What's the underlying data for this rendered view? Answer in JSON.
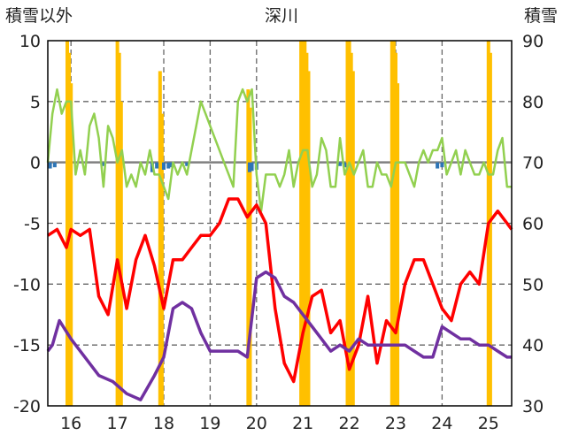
{
  "chart_data": {
    "type": "bar+line",
    "title": "深川",
    "y_left_label": "積雪以外",
    "y_right_label": "積雪",
    "y_left_range": [
      -20,
      10
    ],
    "y_left_ticks": [
      10,
      5,
      0,
      -5,
      -10,
      -15,
      -20
    ],
    "y_right_range": [
      30,
      90
    ],
    "y_right_ticks": [
      90,
      80,
      70,
      60,
      50,
      40,
      30
    ],
    "x_ticks": [
      "16",
      "17",
      "18",
      "19",
      "20",
      "21",
      "22",
      "23",
      "24",
      "25"
    ],
    "x_range": [
      15.5,
      25.5
    ],
    "grid": "dashed",
    "colors": {
      "snow_bar": "#ffc000",
      "precip_bar": "#2e75b6",
      "green": "#92d050",
      "red": "#ff0000",
      "purple": "#7030a0",
      "zero_line": "#808080"
    },
    "series": [
      {
        "color": "green",
        "axis": "left",
        "x": [
          15.5,
          15.6,
          15.7,
          15.8,
          15.9,
          16.0,
          16.1,
          16.2,
          16.3,
          16.4,
          16.5,
          16.6,
          16.7,
          16.8,
          16.9,
          17.0,
          17.1,
          17.2,
          17.3,
          17.4,
          17.5,
          17.6,
          17.7,
          17.8,
          17.9,
          18.0,
          18.1,
          18.2,
          18.3,
          18.4,
          18.5,
          18.6,
          18.7,
          18.8,
          18.9,
          19.0,
          19.1,
          19.2,
          19.3,
          19.4,
          19.5,
          19.6,
          19.7,
          19.8,
          19.9,
          20.0,
          20.1,
          20.2,
          20.3,
          20.4,
          20.5,
          20.6,
          20.7,
          20.8,
          20.9,
          21.0,
          21.1,
          21.2,
          21.3,
          21.4,
          21.5,
          21.6,
          21.7,
          21.8,
          21.9,
          22.0,
          22.1,
          22.2,
          22.3,
          22.4,
          22.5,
          22.6,
          22.7,
          22.8,
          22.9,
          23.0,
          23.1,
          23.2,
          23.3,
          23.4,
          23.5,
          23.6,
          23.7,
          23.8,
          23.9,
          24.0,
          24.1,
          24.2,
          24.3,
          24.4,
          24.5,
          24.6,
          24.7,
          24.8,
          24.9,
          25.0,
          25.1,
          25.2,
          25.3,
          25.4,
          25.5
        ],
        "values": [
          0,
          4,
          6,
          4,
          5,
          5,
          -1,
          1,
          -1,
          3,
          4,
          2,
          -2,
          3,
          2,
          0,
          1,
          -2,
          -1,
          -2,
          0,
          -1,
          1,
          -1,
          -1,
          -2,
          -3,
          0,
          -1,
          0,
          -1,
          1,
          3,
          5,
          4,
          3,
          2,
          1,
          0,
          -1,
          -2,
          5,
          6,
          5,
          6,
          -1,
          -4,
          -1,
          -1,
          -1,
          -2,
          -1,
          1,
          -2,
          0,
          1,
          1,
          -2,
          -1,
          2,
          1,
          -2,
          -2,
          2,
          -1,
          0,
          -1,
          0,
          1,
          -2,
          -2,
          0,
          -1,
          -1,
          -2,
          0,
          0,
          0,
          -1,
          -2,
          0,
          1,
          0,
          1,
          1,
          2,
          -1,
          0,
          1,
          -1,
          1,
          0,
          -1,
          -1,
          0,
          -1,
          -1,
          1,
          2,
          -2,
          -2
        ]
      },
      {
        "color": "red",
        "axis": "left",
        "x": [
          15.5,
          15.7,
          15.9,
          16.0,
          16.2,
          16.4,
          16.6,
          16.8,
          17.0,
          17.2,
          17.4,
          17.6,
          17.8,
          18.0,
          18.2,
          18.4,
          18.6,
          18.8,
          19.0,
          19.2,
          19.4,
          19.6,
          19.8,
          20.0,
          20.2,
          20.4,
          20.6,
          20.8,
          21.0,
          21.2,
          21.4,
          21.6,
          21.8,
          22.0,
          22.2,
          22.4,
          22.6,
          22.8,
          23.0,
          23.2,
          23.4,
          23.6,
          23.8,
          24.0,
          24.2,
          24.4,
          24.6,
          24.8,
          25.0,
          25.2,
          25.4,
          25.5
        ],
        "values": [
          -6,
          -5.5,
          -7,
          -5.5,
          -6,
          -5.5,
          -11,
          -12.5,
          -8,
          -12,
          -8,
          -6,
          -8.5,
          -12,
          -8,
          -8,
          -7,
          -6,
          -6,
          -5,
          -3,
          -3,
          -4.5,
          -3.5,
          -5,
          -12,
          -16.5,
          -18,
          -14,
          -11,
          -10.5,
          -14,
          -13,
          -17,
          -15,
          -11,
          -16.5,
          -13,
          -14,
          -10,
          -8,
          -8,
          -10,
          -12,
          -13,
          -10,
          -9,
          -10,
          -5,
          -4,
          -5,
          -5.5
        ]
      },
      {
        "color": "purple",
        "axis": "left",
        "x": [
          15.5,
          15.6,
          15.75,
          16.0,
          16.3,
          16.6,
          16.9,
          17.2,
          17.5,
          17.8,
          18.0,
          18.2,
          18.4,
          18.6,
          18.8,
          19.0,
          19.2,
          19.4,
          19.6,
          19.8,
          20.0,
          20.2,
          20.4,
          20.6,
          20.8,
          21.0,
          21.2,
          21.4,
          21.6,
          21.8,
          22.0,
          22.2,
          22.4,
          22.6,
          22.8,
          23.0,
          23.2,
          23.4,
          23.6,
          23.8,
          24.0,
          24.2,
          24.4,
          24.6,
          24.8,
          25.0,
          25.2,
          25.4,
          25.5
        ],
        "values": [
          -15.5,
          -15,
          -13,
          -14.5,
          -16,
          -17.5,
          -18,
          -19,
          -19.5,
          -17.5,
          -16,
          -12,
          -11.5,
          -12,
          -14,
          -15.5,
          -15.5,
          -15.5,
          -15.5,
          -16,
          -9.5,
          -9,
          -9.5,
          -11,
          -11.5,
          -12.5,
          -13.5,
          -14.5,
          -15.5,
          -15,
          -15.5,
          -14.5,
          -15,
          -15,
          -15,
          -15,
          -15,
          -15.5,
          -16,
          -16,
          -13.5,
          -14,
          -14.5,
          -14.5,
          -15,
          -15,
          -15.5,
          -16,
          -16
        ]
      }
    ],
    "bars": [
      {
        "color": "snow_bar",
        "axis": "right",
        "x": [
          15.92,
          15.96,
          16.0,
          17.0,
          17.04,
          17.08,
          17.92,
          17.96,
          19.82,
          19.86,
          20.96,
          21.0,
          21.04,
          21.08,
          21.12,
          21.96,
          22.0,
          22.04,
          22.08,
          22.92,
          22.96,
          23.0,
          23.04,
          25.0,
          25.04
        ],
        "values": [
          90,
          88,
          83,
          90,
          88,
          80,
          85,
          78,
          82,
          79,
          90,
          90,
          90,
          88,
          85,
          90,
          90,
          88,
          85,
          90,
          90,
          88,
          83,
          90,
          88
        ]
      },
      {
        "color": "precip_bar",
        "axis": "left",
        "x": [
          15.55,
          15.65,
          16.7,
          17.75,
          17.85,
          18.0,
          18.1,
          18.15,
          18.5,
          19.85,
          19.9,
          20.0,
          21.8,
          21.9,
          23.9,
          24.0
        ],
        "values": [
          -0.5,
          -0.4,
          -0.3,
          -0.8,
          -0.5,
          -0.6,
          -0.5,
          -0.4,
          -0.3,
          -0.8,
          -0.7,
          -0.6,
          -0.3,
          -0.4,
          -0.5,
          -0.4
        ]
      }
    ]
  }
}
